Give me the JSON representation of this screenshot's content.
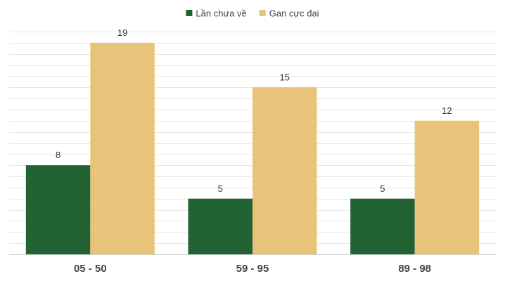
{
  "chart_data": {
    "type": "bar",
    "categories": [
      "05 - 50",
      "59 - 95",
      "89 - 98"
    ],
    "series": [
      {
        "name": "Lần chưa về",
        "values": [
          8,
          5,
          5
        ],
        "color": "#236232"
      },
      {
        "name": "Gan cực đại",
        "values": [
          19,
          15,
          12
        ],
        "color": "#e8c47a"
      }
    ],
    "ylim": [
      0,
      20
    ],
    "grid": true,
    "legend": "top-center",
    "show_data_labels": true,
    "colors": {
      "grid": "#e6e6e6",
      "axis": "#cfcfcf"
    }
  }
}
